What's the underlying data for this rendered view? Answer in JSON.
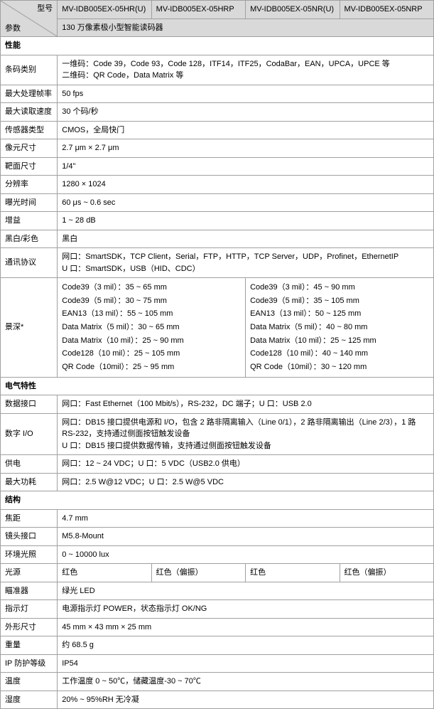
{
  "header": {
    "param_label": "参数",
    "model_label": "型号",
    "models": [
      "MV-IDB005EX-05HR(U)",
      "MV-IDB005EX-05HRP",
      "MV-IDB005EX-05NR(U)",
      "MV-IDB005EX-05NRP"
    ],
    "desc": "130 万像素极小型智能读码器"
  },
  "s_perf": {
    "title": "性能"
  },
  "perf": {
    "barcode_type_label": "条码类别",
    "barcode_type_val": "一维码：Code 39，Code 93，Code 128，ITF14，ITF25，CodaBar，EAN，UPCA，UPCE 等\n二维码：QR Code，Data Matrix 等",
    "fps_label": "最大处理帧率",
    "fps_val": "50 fps",
    "read_label": "最大读取速度",
    "read_val": "30 个码/秒",
    "sensor_label": "传感器类型",
    "sensor_val": "CMOS，全局快门",
    "pixel_label": "像元尺寸",
    "pixel_val": "2.7 μm × 2.7 μm",
    "target_label": "靶面尺寸",
    "target_val": "1/4\"",
    "res_label": "分辨率",
    "res_val": "1280 × 1024",
    "exp_label": "曝光时间",
    "exp_val": "60 μs ~ 0.6 sec",
    "gain_label": "增益",
    "gain_val": "1 ~ 28 dB",
    "mono_label": "黑白/彩色",
    "mono_val": "黑白",
    "proto_label": "通讯协议",
    "proto_val": "网口：SmartSDK，TCP Client，Serial，FTP，HTTP，TCP Server，UDP，Profinet，EthernetIP\nU 口：SmartSDK，USB（HID、CDC）",
    "depth_label": "景深*",
    "depth_left": [
      "Code39（3 mil）：35 ~ 65 mm",
      "Code39（5 mil）：30 ~ 75 mm",
      "EAN13（13 mil）：55 ~ 105 mm",
      "Data Matrix（5 mil）：30 ~ 65 mm",
      "Data Matrix（10 mil）：25 ~ 90 mm",
      "Code128（10 mil）：25 ~ 105 mm",
      "QR Code（10mil）：25 ~ 95 mm"
    ],
    "depth_right": [
      "Code39（3 mil）：45 ~ 90 mm",
      "Code39（5 mil）：35 ~ 105 mm",
      "EAN13（13 mil）：50 ~ 125 mm",
      "Data Matrix（5 mil）：40 ~ 80 mm",
      "Data Matrix（10 mil）：25 ~ 125 mm",
      "Code128（10 mil）：40 ~ 140 mm",
      "QR Code（10mil）：30 ~ 120 mm"
    ]
  },
  "s_elec": {
    "title": "电气特性"
  },
  "elec": {
    "data_if_label": "数据接口",
    "data_if_val": "网口：Fast Ethernet（100 Mbit/s），RS-232，DC 端子；U 口：USB 2.0",
    "io_label": "数字 I/O",
    "io_val": "网口：DB15 接口提供电源和 I/O，包含 2 路非隔离输入（Line 0/1），2 路非隔离输出（Line 2/3），1 路 RS-232，支持通过侧面按钮触发设备\nU 口：DB15 接口提供数据传输，支持通过侧面按钮触发设备",
    "power_label": "供电",
    "power_val": "网口：12 ~ 24 VDC；U 口：5 VDC（USB2.0 供电）",
    "maxp_label": "最大功耗",
    "maxp_val": "网口：2.5 W@12 VDC；U 口：2.5 W@5 VDC"
  },
  "s_struct": {
    "title": "结构"
  },
  "struct": {
    "focal_label": "焦距",
    "focal_val": "4.7 mm",
    "mount_label": "镜头接口",
    "mount_val": "M5.8-Mount",
    "lux_label": "环境光照",
    "lux_val": "0 ~ 10000 lux",
    "light_label": "光源",
    "light_vals": [
      "红色",
      "红色（偏振）",
      "红色",
      "红色（偏振）"
    ],
    "aim_label": "瞄准器",
    "aim_val": "绿光 LED",
    "led_label": "指示灯",
    "led_val": "电源指示灯 POWER，状态指示灯 OK/NG",
    "dim_label": "外形尺寸",
    "dim_val": "45 mm × 43 mm × 25 mm",
    "weight_label": "重量",
    "weight_val": "约 68.5 g",
    "ip_label": "IP 防护等级",
    "ip_val": "IP54",
    "temp_label": "温度",
    "temp_val": "工作温度 0 ~ 50℃，储藏温度-30 ~ 70℃",
    "hum_label": "湿度",
    "hum_val": "20% ~ 95%RH 无冷凝"
  }
}
